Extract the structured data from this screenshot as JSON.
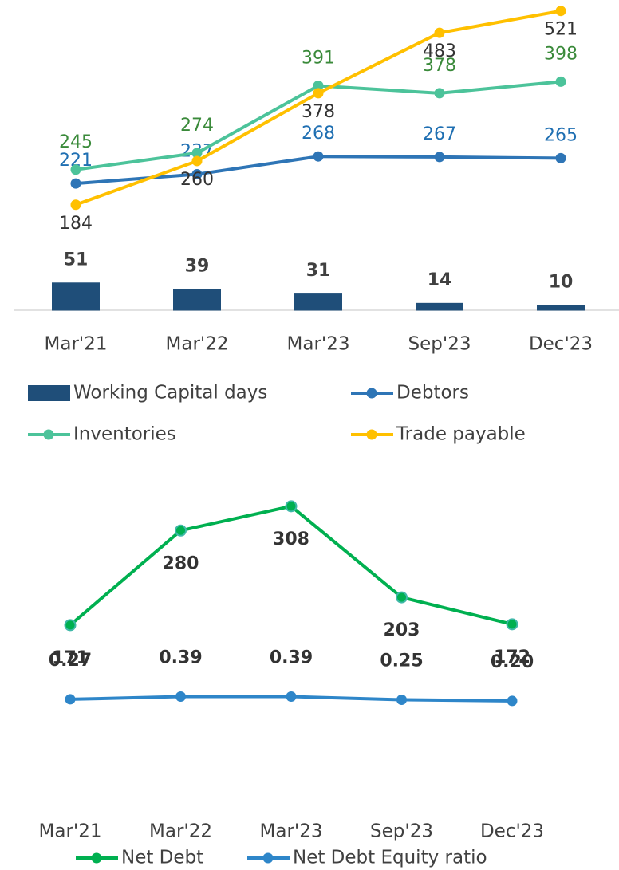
{
  "chart_data": [
    {
      "type": "combo",
      "categories": [
        "Mar'21",
        "Mar'22",
        "Mar'23",
        "Sep'23",
        "Dec'23"
      ],
      "ylim": [
        0,
        540
      ],
      "y2lim": [
        0,
        564
      ],
      "legend": "bottom",
      "series": [
        {
          "name": "Working Capital days",
          "type": "bar",
          "axis": "y2",
          "color": "#1f4e79",
          "values": [
            51,
            39,
            31,
            14,
            10
          ]
        },
        {
          "name": "Debtors",
          "type": "line",
          "color": "#2e75b6",
          "values": [
            221,
            237,
            268,
            267,
            265
          ]
        },
        {
          "name": "Inventories",
          "type": "line",
          "color": "#4cc39a",
          "values": [
            245,
            274,
            391,
            378,
            398
          ]
        },
        {
          "name": "Trade payable",
          "type": "line",
          "color": "#ffc000",
          "values": [
            184,
            260,
            378,
            483,
            521
          ]
        }
      ]
    },
    {
      "type": "line",
      "categories": [
        "Mar'21",
        "Mar'22",
        "Mar'23",
        "Sep'23",
        "Dec'23"
      ],
      "ylim": [
        0,
        340
      ],
      "y2lim": [
        -3,
        10
      ],
      "legend": "bottom",
      "series": [
        {
          "name": "Net Debt",
          "type": "line",
          "color": "#00b050",
          "values": [
            171,
            280,
            308,
            203,
            172
          ]
        },
        {
          "name": "Net Debt Equity ratio",
          "type": "line",
          "axis": "y2",
          "color": "#2e86c9",
          "values": [
            0.27,
            0.39,
            0.39,
            0.25,
            0.2
          ],
          "value_labels": [
            "0.27",
            "0.39",
            "0.39",
            "0.25",
            "0.20"
          ]
        }
      ]
    }
  ]
}
